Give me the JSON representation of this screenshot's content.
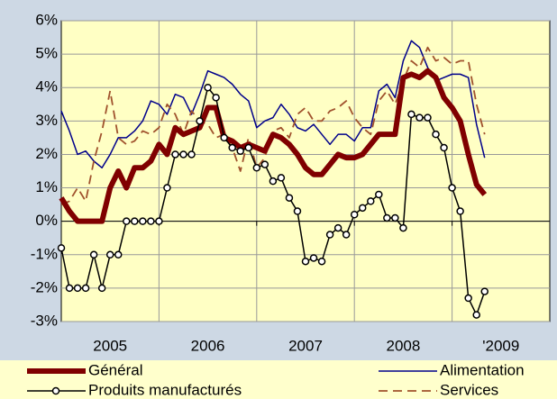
{
  "chart_data": {
    "type": "line",
    "x": [
      0,
      1,
      2,
      3,
      4,
      5,
      6,
      7,
      8,
      9,
      10,
      11,
      12,
      13,
      14,
      15,
      16,
      17,
      18,
      19,
      20,
      21,
      22,
      23,
      24,
      25,
      26,
      27,
      28,
      29,
      30,
      31,
      32,
      33,
      34,
      35,
      36,
      37,
      38,
      39,
      40,
      41,
      42,
      43,
      44,
      45,
      46,
      47,
      48,
      49,
      50,
      51,
      52
    ],
    "xlim": [
      0,
      60
    ],
    "xticks": [
      {
        "value": 6,
        "label": "2005"
      },
      {
        "value": 18,
        "label": "2006"
      },
      {
        "value": 30,
        "label": "2007"
      },
      {
        "value": 42,
        "label": "2008"
      },
      {
        "value": 54,
        "label": "'2009"
      }
    ],
    "xgrid": [
      12,
      24,
      36,
      48
    ],
    "ylim": [
      -3,
      6
    ],
    "yticks": [
      {
        "value": -3,
        "label": "-3%"
      },
      {
        "value": -2,
        "label": "-2%"
      },
      {
        "value": -1,
        "label": "-1%"
      },
      {
        "value": 0,
        "label": "0%"
      },
      {
        "value": 1,
        "label": "1%"
      },
      {
        "value": 2,
        "label": "2%"
      },
      {
        "value": 3,
        "label": "3%"
      },
      {
        "value": 4,
        "label": "4%"
      },
      {
        "value": 5,
        "label": "5%"
      },
      {
        "value": 6,
        "label": "6%"
      }
    ],
    "grid": true,
    "legend": "bottom",
    "series": [
      {
        "name": "Alimentation",
        "color": "#00008b",
        "style": "solid",
        "width": 1.5,
        "values": [
          3.3,
          2.7,
          2.0,
          2.1,
          1.8,
          1.6,
          2.0,
          2.5,
          2.5,
          2.7,
          3.0,
          3.6,
          3.5,
          3.2,
          3.8,
          3.7,
          3.2,
          3.8,
          4.5,
          4.4,
          4.3,
          4.1,
          3.8,
          3.6,
          2.8,
          3.0,
          3.1,
          3.5,
          3.2,
          2.8,
          2.7,
          2.9,
          2.6,
          2.3,
          2.6,
          2.6,
          2.4,
          2.8,
          2.8,
          3.9,
          4.1,
          3.7,
          4.8,
          5.4,
          5.2,
          4.6,
          4.2,
          4.3,
          4.4,
          4.4,
          4.3,
          2.9,
          1.9
        ]
      },
      {
        "name": "Services",
        "color": "#a0522d",
        "style": "dashed",
        "width": 1.8,
        "values": [
          0.5,
          0.6,
          1.0,
          0.6,
          1.8,
          2.7,
          3.9,
          2.5,
          2.3,
          2.4,
          2.7,
          2.6,
          2.8,
          3.5,
          3.2,
          2.6,
          3.3,
          3.0,
          2.9,
          2.5,
          2.6,
          2.2,
          1.5,
          2.5,
          1.6,
          1.9,
          2.7,
          2.8,
          2.5,
          3.2,
          3.4,
          3.0,
          3.0,
          3.3,
          3.4,
          3.6,
          3.1,
          2.8,
          2.6,
          3.6,
          3.9,
          3.5,
          4.2,
          4.8,
          4.6,
          5.2,
          4.8,
          4.9,
          4.7,
          4.8,
          4.8,
          3.5,
          2.6
        ]
      },
      {
        "name": "Général",
        "color": "#800000",
        "style": "solid",
        "width": 6,
        "values": [
          0.7,
          0.3,
          0,
          0,
          0,
          0,
          1,
          1.5,
          1,
          1.6,
          1.6,
          1.8,
          2.3,
          2,
          2.8,
          2.6,
          2.7,
          2.8,
          3.4,
          3.4,
          2.5,
          2.4,
          2.2,
          2.3,
          2.2,
          2.1,
          2.6,
          2.5,
          2.3,
          2.0,
          1.6,
          1.4,
          1.4,
          1.7,
          2.0,
          1.9,
          1.9,
          2.0,
          2.3,
          2.6,
          2.6,
          2.6,
          4.3,
          4.4,
          4.3,
          4.5,
          4.3,
          3.7,
          3.4,
          3.0,
          2.0,
          1.1,
          0.8
        ]
      },
      {
        "name": "Produits manufacturés",
        "color": "#000000",
        "style": "marker",
        "width": 1.5,
        "values": [
          -0.8,
          -2,
          -2,
          -2,
          -1,
          -2,
          -1,
          -1,
          0,
          0,
          0,
          0,
          0,
          1,
          2,
          2,
          2,
          3,
          4,
          3.7,
          2.5,
          2.2,
          2.1,
          2.2,
          1.6,
          1.7,
          1.2,
          1.3,
          0.7,
          0.3,
          -1.2,
          -1.1,
          -1.2,
          -0.4,
          -0.2,
          -0.4,
          0.2,
          0.4,
          0.6,
          0.8,
          0.1,
          0.1,
          -0.2,
          3.2,
          3.1,
          3.1,
          2.6,
          2.2,
          1.0,
          0.3,
          -2.3,
          -2.8,
          -2.1
        ]
      }
    ]
  }
}
